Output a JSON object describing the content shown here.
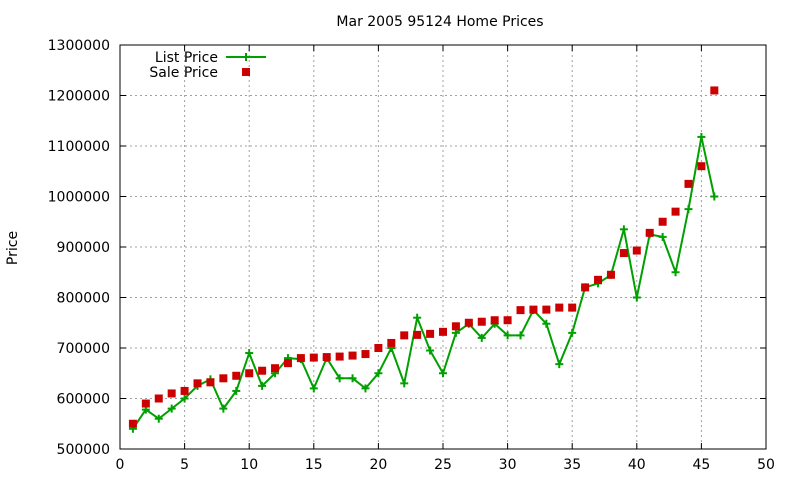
{
  "chart_data": {
    "type": "line",
    "title": "Mar 2005 95124 Home Prices",
    "xlabel": "",
    "ylabel": "Price",
    "xlim": [
      0,
      50
    ],
    "ylim": [
      500000,
      1300000
    ],
    "xticks": [
      0,
      5,
      10,
      15,
      20,
      25,
      30,
      35,
      40,
      45,
      50
    ],
    "yticks": [
      500000,
      600000,
      700000,
      800000,
      900000,
      1000000,
      1100000,
      1200000,
      1300000
    ],
    "grid": true,
    "legend_position": "top-left",
    "series": [
      {
        "name": "List Price",
        "style": "line-plus",
        "color": "#00a000",
        "x": [
          1,
          2,
          3,
          4,
          5,
          6,
          7,
          8,
          9,
          10,
          11,
          12,
          13,
          14,
          15,
          16,
          17,
          18,
          19,
          20,
          21,
          22,
          23,
          24,
          25,
          26,
          27,
          28,
          29,
          30,
          31,
          32,
          33,
          34,
          35,
          36,
          37,
          38,
          39,
          40,
          41,
          42,
          43,
          44,
          45,
          46
        ],
        "y": [
          540000,
          578000,
          560000,
          580000,
          600000,
          625000,
          638000,
          580000,
          615000,
          690000,
          625000,
          650000,
          680000,
          678000,
          620000,
          680000,
          640000,
          640000,
          620000,
          650000,
          700000,
          630000,
          760000,
          695000,
          650000,
          730000,
          748000,
          720000,
          748000,
          725000,
          725000,
          775000,
          748000,
          668000,
          730000,
          820000,
          828000,
          845000,
          935000,
          800000,
          925000,
          920000,
          850000,
          975000,
          1118000,
          1000000
        ]
      },
      {
        "name": "Sale Price",
        "style": "square",
        "color": "#cc0000",
        "x": [
          1,
          2,
          3,
          4,
          5,
          6,
          7,
          8,
          9,
          10,
          11,
          12,
          13,
          14,
          15,
          16,
          17,
          18,
          19,
          20,
          21,
          22,
          23,
          24,
          25,
          26,
          27,
          28,
          29,
          30,
          31,
          32,
          33,
          34,
          35,
          36,
          37,
          38,
          39,
          40,
          41,
          42,
          43,
          44,
          45,
          46
        ],
        "y": [
          550000,
          590000,
          600000,
          610000,
          615000,
          630000,
          632000,
          640000,
          645000,
          650000,
          655000,
          660000,
          670000,
          680000,
          681000,
          682000,
          683000,
          685000,
          688000,
          700000,
          710000,
          725000,
          726000,
          728000,
          732000,
          743000,
          750000,
          752000,
          755000,
          755000,
          775000,
          776000,
          776000,
          780000,
          780000,
          820000,
          835000,
          845000,
          888000,
          893000,
          928000,
          950000,
          970000,
          1025000,
          1060000,
          1210000
        ]
      }
    ]
  }
}
